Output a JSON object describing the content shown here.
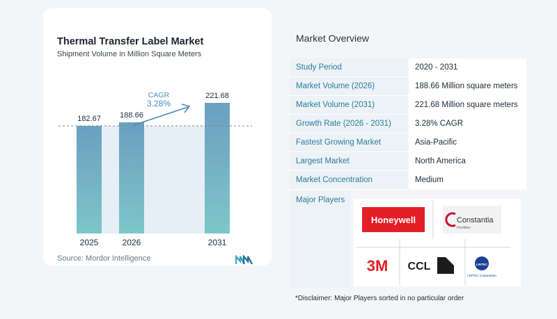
{
  "chart_data": {
    "type": "bar",
    "title": "Thermal Transfer Label Market",
    "subtitle": "Shipment Volume in Million Square Meters",
    "categories": [
      "2025",
      "2026",
      "2031"
    ],
    "values": [
      182.67,
      188.66,
      221.68
    ],
    "value_labels": [
      "182.67",
      "188.66",
      "221.68"
    ],
    "ylim": [
      0,
      221.68
    ],
    "grid": false,
    "reference_line": 182.67,
    "annotation": {
      "label": "CAGR",
      "value": "3.28%",
      "from": "2026",
      "to": "2031"
    },
    "bar_color_top": "#6b9fbf",
    "bar_color_bottom": "#7ec6c9",
    "shade_color": "#e6eff5"
  },
  "source": "Source:  Mordor Intelligence",
  "overview": {
    "title": "Market Overview",
    "rows": [
      {
        "label": "Study Period",
        "value": "2020 - 2031"
      },
      {
        "label": "Market Volume (2026)",
        "value": "188.66 Million square meters"
      },
      {
        "label": "Market Volume (2031)",
        "value": "221.68 Million square meters"
      },
      {
        "label": "Growth Rate (2026 - 2031)",
        "value": "3.28% CAGR"
      },
      {
        "label": "Fastest Growing Market",
        "value": "Asia-Pacific"
      },
      {
        "label": "Largest Market",
        "value": "North America"
      },
      {
        "label": "Market Concentration",
        "value": "Medium"
      }
    ],
    "major_players_label": "Major Players",
    "players": [
      {
        "name": "Honeywell",
        "color": "#e41e26"
      },
      {
        "name": "Constantia",
        "sub": "Flexibles",
        "color": "#c8102e"
      },
      {
        "name": "3M",
        "color": "#e41e26"
      },
      {
        "name": "CCL",
        "color": "#1c1c1c"
      },
      {
        "name": "LINTEC",
        "sub": "LINTEC Corporation",
        "color": "#1b3f94"
      }
    ],
    "disclaimer": "*Disclaimer: Major Players sorted in no particular order"
  }
}
